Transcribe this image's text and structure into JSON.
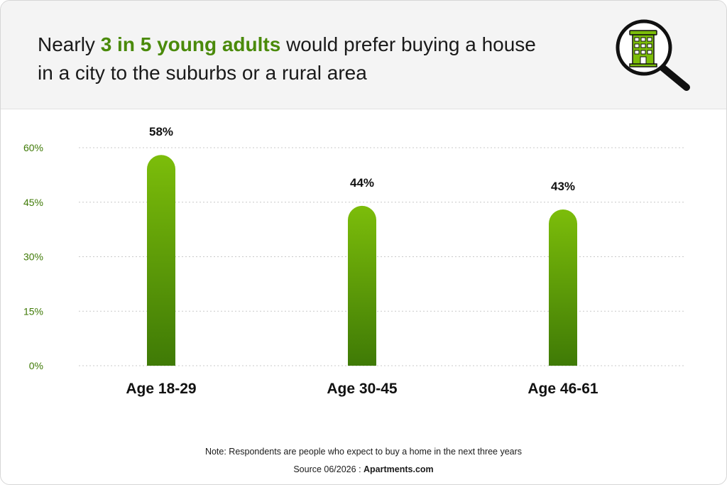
{
  "header": {
    "title_pre": "Nearly ",
    "title_highlight": "3 in 5 young adults",
    "title_post": " would prefer buying a house in a city to the suburbs or a rural area"
  },
  "colors": {
    "bar_top": "#7cbd0a",
    "bar_bottom": "#3f7a06",
    "axis_text": "#3f7a06",
    "highlight": "#4a8a0a"
  },
  "icons": {
    "logo": "building-magnifier-icon"
  },
  "chart_data": {
    "type": "bar",
    "categories": [
      "Age 18-29",
      "Age 30-45",
      "Age 46-61"
    ],
    "values": [
      58,
      44,
      43
    ],
    "value_labels": [
      "58%",
      "44%",
      "43%"
    ],
    "yticks": [
      "0%",
      "15%",
      "30%",
      "45%",
      "60%"
    ],
    "ytick_values": [
      0,
      15,
      30,
      45,
      60
    ],
    "ylim": [
      0,
      60
    ],
    "grid": true,
    "legend": "none"
  },
  "footer": {
    "note": "Note: Respondents are people who expect to buy a home in the next three years",
    "source_prefix": "Source 06/2026 : ",
    "source_name": "Apartments.com"
  }
}
